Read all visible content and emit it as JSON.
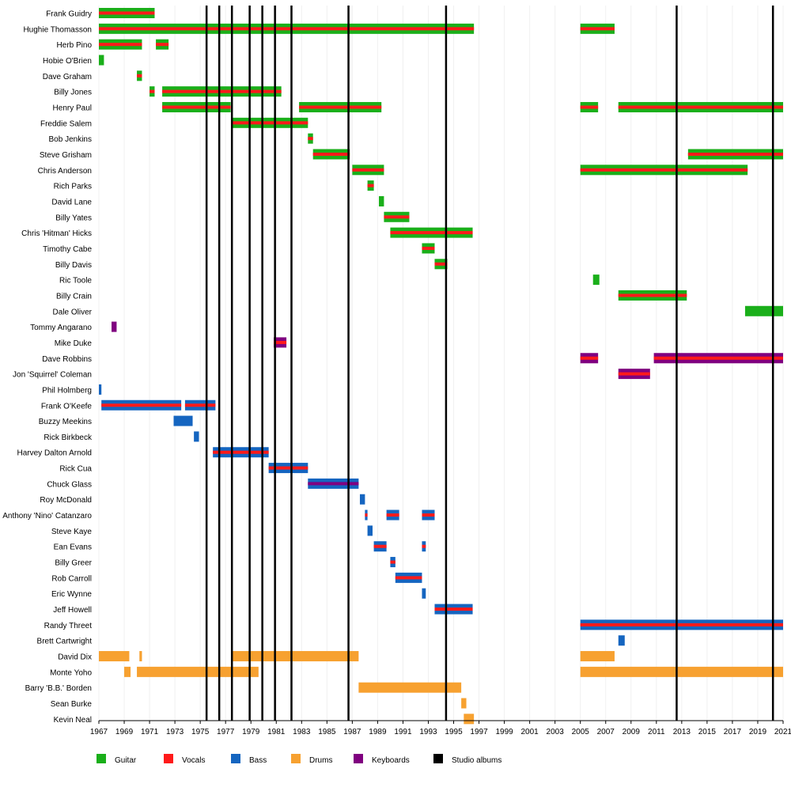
{
  "chart_data": {
    "type": "timeline",
    "x_range": [
      1967,
      2021
    ],
    "x_ticks": [
      "1967",
      "1969",
      "1971",
      "1973",
      "1975",
      "1977",
      "1979",
      "1981",
      "1983",
      "1985",
      "1987",
      "1989",
      "1991",
      "1993",
      "1995",
      "1997",
      "1999",
      "2001",
      "2003",
      "2005",
      "2007",
      "2009",
      "2011",
      "2013",
      "2015",
      "2017",
      "2019",
      "2021"
    ],
    "colors": {
      "Guitar": "#1aaf1a",
      "Vocals": "#ff1a1a",
      "Bass": "#1565c0",
      "Drums": "#f7a130",
      "Keyboards": "#800080",
      "Studio albums": "#000000"
    },
    "legend": [
      {
        "label": "Guitar",
        "color": "#1aaf1a"
      },
      {
        "label": "Vocals",
        "color": "#ff1a1a"
      },
      {
        "label": "Bass",
        "color": "#1565c0"
      },
      {
        "label": "Drums",
        "color": "#f7a130"
      },
      {
        "label": "Keyboards",
        "color": "#800080"
      },
      {
        "label": "Studio albums",
        "color": "#000000"
      }
    ],
    "studio_albums": [
      1975.5,
      1976.5,
      1977.5,
      1978.9,
      1979.9,
      1980.9,
      1982.2,
      1986.7,
      1994.4,
      2012.6,
      2020.2
    ],
    "members": [
      {
        "name": "Frank Guidry",
        "periods": [
          {
            "start": 1967.0,
            "end": 1971.4,
            "instrument": "Guitar",
            "vocals": true
          }
        ]
      },
      {
        "name": "Hughie Thomasson",
        "periods": [
          {
            "start": 1967.0,
            "end": 1996.6,
            "instrument": "Guitar",
            "vocals": true
          },
          {
            "start": 2005.0,
            "end": 2007.7,
            "instrument": "Guitar",
            "vocals": true
          }
        ]
      },
      {
        "name": "Herb Pino",
        "periods": [
          {
            "start": 1967.0,
            "end": 1970.4,
            "instrument": "Guitar",
            "vocals": true
          },
          {
            "start": 1971.5,
            "end": 1972.5,
            "instrument": "Guitar",
            "vocals": true
          }
        ]
      },
      {
        "name": "Hobie O'Brien",
        "periods": [
          {
            "start": 1967.0,
            "end": 1967.4,
            "instrument": "Guitar",
            "vocals": false
          }
        ]
      },
      {
        "name": "Dave Graham",
        "periods": [
          {
            "start": 1970.0,
            "end": 1970.4,
            "instrument": "Guitar",
            "vocals": true
          }
        ]
      },
      {
        "name": "Billy Jones",
        "periods": [
          {
            "start": 1971.0,
            "end": 1971.4,
            "instrument": "Guitar",
            "vocals": true
          },
          {
            "start": 1972.0,
            "end": 1981.4,
            "instrument": "Guitar",
            "vocals": true
          }
        ]
      },
      {
        "name": "Henry Paul",
        "periods": [
          {
            "start": 1972.0,
            "end": 1977.4,
            "instrument": "Guitar",
            "vocals": true
          },
          {
            "start": 1982.8,
            "end": 1989.3,
            "instrument": "Guitar",
            "vocals": true
          },
          {
            "start": 2005.0,
            "end": 2006.4,
            "instrument": "Guitar",
            "vocals": true
          },
          {
            "start": 2008.0,
            "end": 2021.0,
            "instrument": "Guitar",
            "vocals": true
          }
        ]
      },
      {
        "name": "Freddie Salem",
        "periods": [
          {
            "start": 1977.5,
            "end": 1983.5,
            "instrument": "Guitar",
            "vocals": true
          }
        ]
      },
      {
        "name": "Bob Jenkins",
        "periods": [
          {
            "start": 1983.5,
            "end": 1983.9,
            "instrument": "Guitar",
            "vocals": true
          }
        ]
      },
      {
        "name": "Steve Grisham",
        "periods": [
          {
            "start": 1983.9,
            "end": 1986.8,
            "instrument": "Guitar",
            "vocals": true
          },
          {
            "start": 2013.5,
            "end": 2021.0,
            "instrument": "Guitar",
            "vocals": true
          }
        ]
      },
      {
        "name": "Chris Anderson",
        "periods": [
          {
            "start": 1987.0,
            "end": 1989.5,
            "instrument": "Guitar",
            "vocals": true
          },
          {
            "start": 2005.0,
            "end": 2018.2,
            "instrument": "Guitar",
            "vocals": true
          }
        ]
      },
      {
        "name": "Rich Parks",
        "periods": [
          {
            "start": 1988.2,
            "end": 1988.7,
            "instrument": "Guitar",
            "vocals": true
          }
        ]
      },
      {
        "name": "David Lane",
        "periods": [
          {
            "start": 1989.1,
            "end": 1989.5,
            "instrument": "Guitar",
            "vocals": false
          }
        ]
      },
      {
        "name": "Billy Yates",
        "periods": [
          {
            "start": 1989.5,
            "end": 1991.5,
            "instrument": "Guitar",
            "vocals": true
          }
        ]
      },
      {
        "name": "Chris 'Hitman' Hicks",
        "periods": [
          {
            "start": 1990.0,
            "end": 1996.5,
            "instrument": "Guitar",
            "vocals": true
          }
        ]
      },
      {
        "name": "Timothy Cabe",
        "periods": [
          {
            "start": 1992.5,
            "end": 1993.5,
            "instrument": "Guitar",
            "vocals": true
          }
        ]
      },
      {
        "name": "Billy Davis",
        "periods": [
          {
            "start": 1993.5,
            "end": 1994.5,
            "instrument": "Guitar",
            "vocals": true
          }
        ]
      },
      {
        "name": "Ric Toole",
        "periods": [
          {
            "start": 2006.0,
            "end": 2006.5,
            "instrument": "Guitar",
            "vocals": false
          }
        ]
      },
      {
        "name": "Billy Crain",
        "periods": [
          {
            "start": 2008.0,
            "end": 2013.4,
            "instrument": "Guitar",
            "vocals": true
          }
        ]
      },
      {
        "name": "Dale Oliver",
        "periods": [
          {
            "start": 2018.0,
            "end": 2021.0,
            "instrument": "Guitar",
            "vocals": false
          }
        ]
      },
      {
        "name": "Tommy Angarano",
        "periods": [
          {
            "start": 1968.0,
            "end": 1968.4,
            "instrument": "Keyboards",
            "vocals": false
          }
        ]
      },
      {
        "name": "Mike Duke",
        "periods": [
          {
            "start": 1980.8,
            "end": 1981.8,
            "instrument": "Keyboards",
            "vocals": true
          }
        ]
      },
      {
        "name": "Dave Robbins",
        "periods": [
          {
            "start": 2005.0,
            "end": 2006.4,
            "instrument": "Keyboards",
            "vocals": true
          },
          {
            "start": 2010.8,
            "end": 2021.0,
            "instrument": "Keyboards",
            "vocals": true
          }
        ]
      },
      {
        "name": "Jon 'Squirrel' Coleman",
        "periods": [
          {
            "start": 2008.0,
            "end": 2010.5,
            "instrument": "Keyboards",
            "vocals": true
          }
        ]
      },
      {
        "name": "Phil Holmberg",
        "periods": [
          {
            "start": 1967.0,
            "end": 1967.2,
            "instrument": "Bass",
            "vocals": false
          }
        ]
      },
      {
        "name": "Frank O'Keefe",
        "periods": [
          {
            "start": 1967.2,
            "end": 1973.5,
            "instrument": "Bass",
            "vocals": true
          },
          {
            "start": 1973.8,
            "end": 1976.2,
            "instrument": "Bass",
            "vocals": true
          }
        ]
      },
      {
        "name": "Buzzy Meekins",
        "periods": [
          {
            "start": 1972.9,
            "end": 1974.4,
            "instrument": "Bass",
            "vocals": false
          }
        ]
      },
      {
        "name": "Rick Birkbeck",
        "periods": [
          {
            "start": 1974.5,
            "end": 1974.9,
            "instrument": "Bass",
            "vocals": false
          }
        ]
      },
      {
        "name": "Harvey Dalton Arnold",
        "periods": [
          {
            "start": 1976.0,
            "end": 1980.4,
            "instrument": "Bass",
            "vocals": true
          }
        ]
      },
      {
        "name": "Rick Cua",
        "periods": [
          {
            "start": 1980.4,
            "end": 1983.5,
            "instrument": "Bass",
            "vocals": true
          }
        ]
      },
      {
        "name": "Chuck Glass",
        "periods": [
          {
            "start": 1983.5,
            "end": 1987.5,
            "instrument": "Bass",
            "vocals": true,
            "vocals_color": "#800080"
          }
        ]
      },
      {
        "name": "Roy McDonald",
        "periods": [
          {
            "start": 1987.6,
            "end": 1988.0,
            "instrument": "Bass",
            "vocals": false
          }
        ]
      },
      {
        "name": "Anthony 'Nino' Catanzaro",
        "periods": [
          {
            "start": 1988.0,
            "end": 1988.2,
            "instrument": "Bass",
            "vocals": true
          },
          {
            "start": 1989.7,
            "end": 1990.7,
            "instrument": "Bass",
            "vocals": true
          },
          {
            "start": 1992.5,
            "end": 1993.5,
            "instrument": "Bass",
            "vocals": true
          }
        ]
      },
      {
        "name": "Steve Kaye",
        "periods": [
          {
            "start": 1988.2,
            "end": 1988.6,
            "instrument": "Bass",
            "vocals": false
          }
        ]
      },
      {
        "name": "Ean Evans",
        "periods": [
          {
            "start": 1988.7,
            "end": 1989.7,
            "instrument": "Bass",
            "vocals": true
          },
          {
            "start": 1992.5,
            "end": 1992.8,
            "instrument": "Bass",
            "vocals": true
          }
        ]
      },
      {
        "name": "Billy Greer",
        "periods": [
          {
            "start": 1990.0,
            "end": 1990.4,
            "instrument": "Bass",
            "vocals": true
          }
        ]
      },
      {
        "name": "Rob Carroll",
        "periods": [
          {
            "start": 1990.4,
            "end": 1992.5,
            "instrument": "Bass",
            "vocals": true
          }
        ]
      },
      {
        "name": "Eric Wynne",
        "periods": [
          {
            "start": 1992.5,
            "end": 1992.8,
            "instrument": "Bass",
            "vocals": false
          }
        ]
      },
      {
        "name": "Jeff Howell",
        "periods": [
          {
            "start": 1993.5,
            "end": 1996.5,
            "instrument": "Bass",
            "vocals": true
          }
        ]
      },
      {
        "name": "Randy Threet",
        "periods": [
          {
            "start": 2005.0,
            "end": 2021.0,
            "instrument": "Bass",
            "vocals": true
          }
        ]
      },
      {
        "name": "Brett Cartwright",
        "periods": [
          {
            "start": 2008.0,
            "end": 2008.5,
            "instrument": "Bass",
            "vocals": false
          }
        ]
      },
      {
        "name": "David Dix",
        "periods": [
          {
            "start": 1967.0,
            "end": 1969.4,
            "instrument": "Drums",
            "vocals": false
          },
          {
            "start": 1970.2,
            "end": 1970.4,
            "instrument": "Drums",
            "vocals": false
          },
          {
            "start": 1977.5,
            "end": 1987.5,
            "instrument": "Drums",
            "vocals": false
          },
          {
            "start": 2005.0,
            "end": 2007.7,
            "instrument": "Drums",
            "vocals": false
          }
        ]
      },
      {
        "name": "Monte Yoho",
        "periods": [
          {
            "start": 1969.0,
            "end": 1969.5,
            "instrument": "Drums",
            "vocals": false
          },
          {
            "start": 1970.0,
            "end": 1979.6,
            "instrument": "Drums",
            "vocals": false
          },
          {
            "start": 2005.0,
            "end": 2021.0,
            "instrument": "Drums",
            "vocals": false
          }
        ]
      },
      {
        "name": "Barry 'B.B.' Borden",
        "periods": [
          {
            "start": 1987.5,
            "end": 1995.6,
            "instrument": "Drums",
            "vocals": false
          }
        ]
      },
      {
        "name": "Sean Burke",
        "periods": [
          {
            "start": 1995.6,
            "end": 1996.0,
            "instrument": "Drums",
            "vocals": false
          }
        ]
      },
      {
        "name": "Kevin Neal",
        "periods": [
          {
            "start": 1995.8,
            "end": 1996.6,
            "instrument": "Drums",
            "vocals": false
          }
        ]
      }
    ]
  }
}
